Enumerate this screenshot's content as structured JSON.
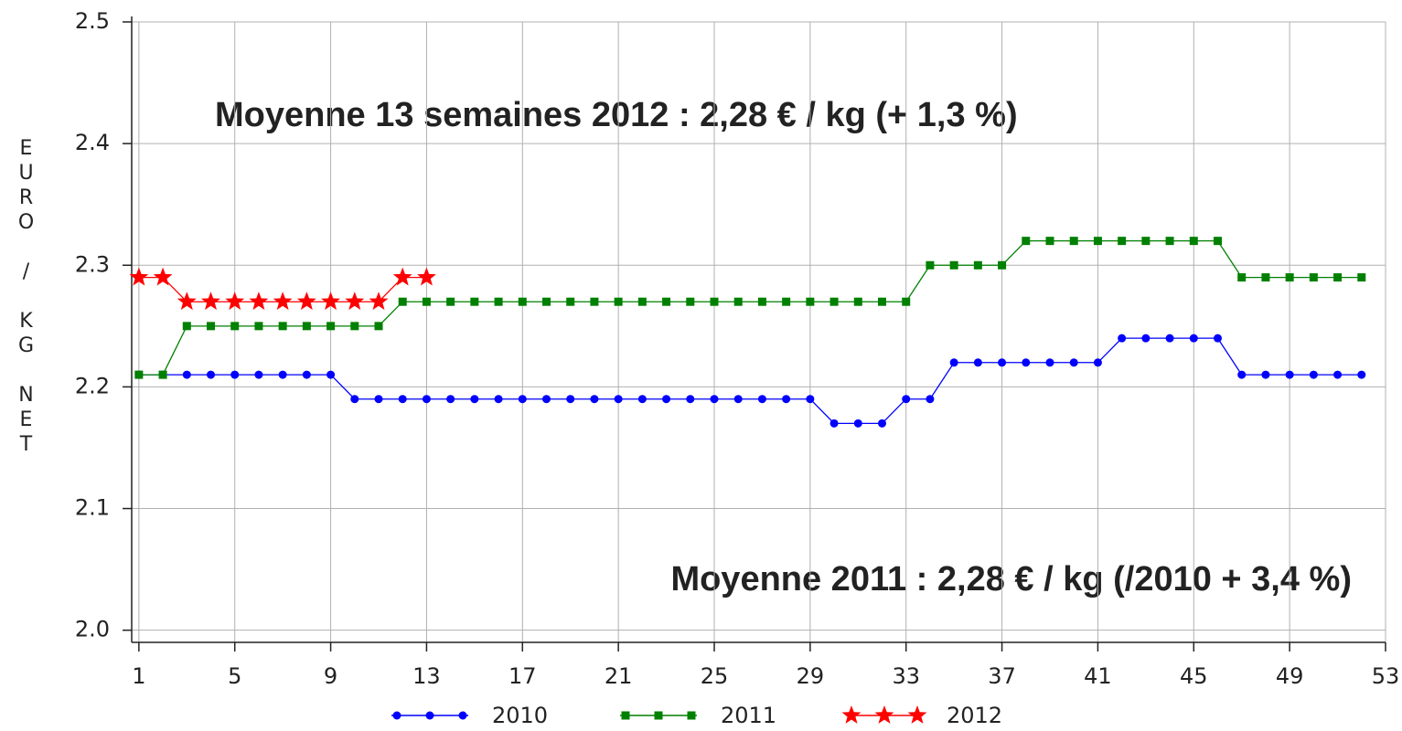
{
  "chart_data": {
    "type": "line",
    "ylabel": "EURO / KG NET",
    "annotations": [
      {
        "text": "Moyenne 13 semaines 2012 : 2,28 € / kg (+ 1,3 %)",
        "color": "#ff0000"
      },
      {
        "text": "Moyenne 2011 : 2,28 € / kg (/2010 + 3,4 %)",
        "color": "#339933"
      }
    ],
    "x": [
      1,
      2,
      3,
      4,
      5,
      6,
      7,
      8,
      9,
      10,
      11,
      12,
      13,
      14,
      15,
      16,
      17,
      18,
      19,
      20,
      21,
      22,
      23,
      24,
      25,
      26,
      27,
      28,
      29,
      30,
      31,
      32,
      33,
      34,
      35,
      36,
      37,
      38,
      39,
      40,
      41,
      42,
      43,
      44,
      45,
      46,
      47,
      48,
      49,
      50,
      51,
      52
    ],
    "xlim": [
      0.7,
      53
    ],
    "xticks": [
      1,
      5,
      9,
      13,
      17,
      21,
      25,
      29,
      33,
      37,
      41,
      45,
      49,
      53
    ],
    "ylim": [
      1.99,
      2.5
    ],
    "yticks": [
      {
        "value": 2,
        "label": "2.0"
      },
      2.1,
      2.2,
      2.3,
      2.4,
      2.5
    ],
    "grid": true,
    "series": [
      {
        "name": "2010",
        "color": "#0000ff",
        "marker": "circle",
        "values": [
          2.21,
          2.21,
          2.21,
          2.21,
          2.21,
          2.21,
          2.21,
          2.21,
          2.21,
          2.19,
          2.19,
          2.19,
          2.19,
          2.19,
          2.19,
          2.19,
          2.19,
          2.19,
          2.19,
          2.19,
          2.19,
          2.19,
          2.19,
          2.19,
          2.19,
          2.19,
          2.19,
          2.19,
          2.19,
          2.17,
          2.17,
          2.17,
          2.19,
          2.19,
          2.22,
          2.22,
          2.22,
          2.22,
          2.22,
          2.22,
          2.22,
          2.24,
          2.24,
          2.24,
          2.24,
          2.24,
          2.21,
          2.21,
          2.21,
          2.21,
          2.21,
          2.21
        ]
      },
      {
        "name": "2011",
        "color": "#008000",
        "marker": "square",
        "values": [
          2.21,
          2.21,
          2.25,
          2.25,
          2.25,
          2.25,
          2.25,
          2.25,
          2.25,
          2.25,
          2.25,
          2.27,
          2.27,
          2.27,
          2.27,
          2.27,
          2.27,
          2.27,
          2.27,
          2.27,
          2.27,
          2.27,
          2.27,
          2.27,
          2.27,
          2.27,
          2.27,
          2.27,
          2.27,
          2.27,
          2.27,
          2.27,
          2.27,
          2.3,
          2.3,
          2.3,
          2.3,
          2.32,
          2.32,
          2.32,
          2.32,
          2.32,
          2.32,
          2.32,
          2.32,
          2.32,
          2.29,
          2.29,
          2.29,
          2.29,
          2.29,
          2.29
        ]
      },
      {
        "name": "2012",
        "color": "#ff0000",
        "marker": "star",
        "values": [
          2.29,
          2.29,
          2.27,
          2.27,
          2.27,
          2.27,
          2.27,
          2.27,
          2.27,
          2.27,
          2.27,
          2.29,
          2.29,
          null,
          null,
          null,
          null,
          null,
          null,
          null,
          null,
          null,
          null,
          null,
          null,
          null,
          null,
          null,
          null,
          null,
          null,
          null,
          null,
          null,
          null,
          null,
          null,
          null,
          null,
          null,
          null,
          null,
          null,
          null,
          null,
          null,
          null,
          null,
          null,
          null,
          null,
          null
        ]
      }
    ]
  }
}
